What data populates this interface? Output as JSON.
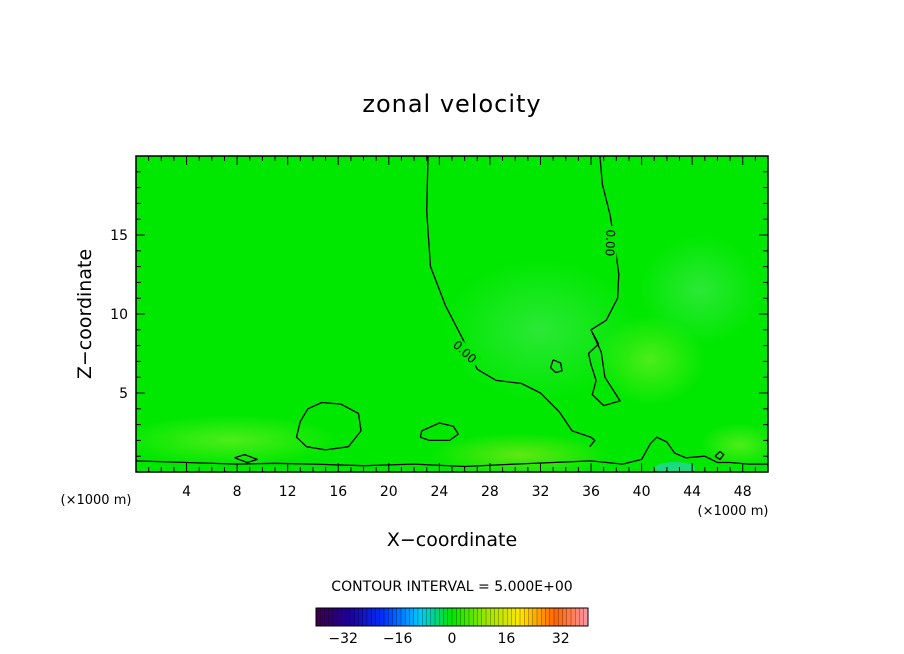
{
  "chart_data": {
    "type": "heatmap",
    "title": "zonal velocity",
    "xlabel": "X−coordinate",
    "ylabel": "Z−coordinate",
    "x_unit": "(×1000 m)",
    "y_unit": "(×1000 m)",
    "xlim": [
      0,
      50
    ],
    "ylim": [
      0,
      20
    ],
    "x_ticks": [
      4,
      8,
      12,
      16,
      20,
      24,
      28,
      32,
      36,
      40,
      44,
      48
    ],
    "x_tick_labels": [
      "4",
      "8",
      "12",
      "16",
      "20",
      "24",
      "28",
      "32",
      "36",
      "40",
      "44",
      "48"
    ],
    "y_ticks": [
      5,
      10,
      15
    ],
    "y_tick_labels": [
      "5",
      "10",
      "15"
    ],
    "contour_interval_text": "CONTOUR INTERVAL =  5.000E+00",
    "contour_label": "0.00",
    "colorbar": {
      "min": -40,
      "max": 40,
      "tick_values": [
        -32,
        -16,
        0,
        16,
        32
      ],
      "tick_labels": [
        "−32",
        "−16",
        "0",
        "16",
        "32"
      ]
    },
    "contours": [
      {
        "level": 0,
        "label": "0.00",
        "points": [
          [
            23.1,
            20
          ],
          [
            23.0,
            16.5
          ],
          [
            23.3,
            13
          ],
          [
            24.5,
            10.5
          ],
          [
            25.8,
            8.5
          ],
          [
            27.0,
            6.5
          ],
          [
            28.5,
            5.8
          ],
          [
            30.5,
            5.6
          ],
          [
            32.0,
            5.0
          ],
          [
            33.5,
            3.8
          ],
          [
            34.5,
            2.6
          ],
          [
            36.0,
            2.2
          ],
          [
            36.3,
            2.0
          ],
          [
            35.9,
            1.6
          ]
        ]
      },
      {
        "level": 0,
        "label": "0.00",
        "points": [
          [
            36.7,
            20
          ],
          [
            36.9,
            18.2
          ],
          [
            37.5,
            16.3
          ],
          [
            37.9,
            14.3
          ],
          [
            38.2,
            12.5
          ],
          [
            38.1,
            11.0
          ],
          [
            37.2,
            9.6
          ],
          [
            36.0,
            9.0
          ],
          [
            36.8,
            7.6
          ],
          [
            37.1,
            6.0
          ],
          [
            38.3,
            4.5
          ],
          [
            37.0,
            4.2
          ],
          [
            36.1,
            4.9
          ],
          [
            36.4,
            5.8
          ],
          [
            36.0,
            6.8
          ],
          [
            35.8,
            7.5
          ],
          [
            36.6,
            8.1
          ],
          [
            36.0,
            9.0
          ]
        ]
      },
      {
        "level": 0,
        "points": [
          [
            14.7,
            4.4
          ],
          [
            16.2,
            4.3
          ],
          [
            17.6,
            3.7
          ],
          [
            17.8,
            2.6
          ],
          [
            16.8,
            1.6
          ],
          [
            15.0,
            1.4
          ],
          [
            13.5,
            1.6
          ],
          [
            12.7,
            2.2
          ],
          [
            13.0,
            3.2
          ],
          [
            13.6,
            4.0
          ],
          [
            14.7,
            4.4
          ]
        ]
      },
      {
        "level": 0,
        "points": [
          [
            22.6,
            2.6
          ],
          [
            24.0,
            3.1
          ],
          [
            25.1,
            2.9
          ],
          [
            25.5,
            2.4
          ],
          [
            24.8,
            2.0
          ],
          [
            23.2,
            2.0
          ],
          [
            22.5,
            2.2
          ],
          [
            22.6,
            2.6
          ]
        ]
      },
      {
        "level": 0,
        "points": [
          [
            33.0,
            7.1
          ],
          [
            33.6,
            6.9
          ],
          [
            33.7,
            6.4
          ],
          [
            33.2,
            6.3
          ],
          [
            32.8,
            6.6
          ],
          [
            33.0,
            7.1
          ]
        ]
      },
      {
        "level": 0,
        "points": [
          [
            0,
            0.7
          ],
          [
            4,
            0.6
          ],
          [
            8,
            0.5
          ],
          [
            11,
            0.55
          ],
          [
            14,
            0.5
          ],
          [
            18,
            0.4
          ],
          [
            22,
            0.5
          ],
          [
            26,
            0.35
          ],
          [
            30,
            0.5
          ],
          [
            33,
            0.6
          ],
          [
            36,
            0.7
          ],
          [
            38.5,
            0.5
          ]
        ]
      },
      {
        "level": 0,
        "points": [
          [
            38.5,
            0.5
          ],
          [
            40,
            0.8
          ],
          [
            40.7,
            1.8
          ],
          [
            41.2,
            2.2
          ],
          [
            42.0,
            1.9
          ],
          [
            42.6,
            1.2
          ],
          [
            43.5,
            0.9
          ],
          [
            45.0,
            1.0
          ],
          [
            46.0,
            0.6
          ],
          [
            47.0,
            0.6
          ],
          [
            48.5,
            0.5
          ],
          [
            50,
            0.5
          ]
        ]
      },
      {
        "level": 0,
        "points": [
          [
            7.8,
            0.9
          ],
          [
            8.6,
            1.1
          ],
          [
            9.6,
            0.8
          ],
          [
            8.8,
            0.6
          ],
          [
            7.8,
            0.9
          ]
        ]
      },
      {
        "level": 0,
        "points": [
          [
            45.8,
            1.0
          ],
          [
            46.2,
            1.3
          ],
          [
            46.5,
            1.1
          ],
          [
            46.2,
            0.8
          ],
          [
            45.8,
            1.0
          ]
        ]
      }
    ]
  }
}
